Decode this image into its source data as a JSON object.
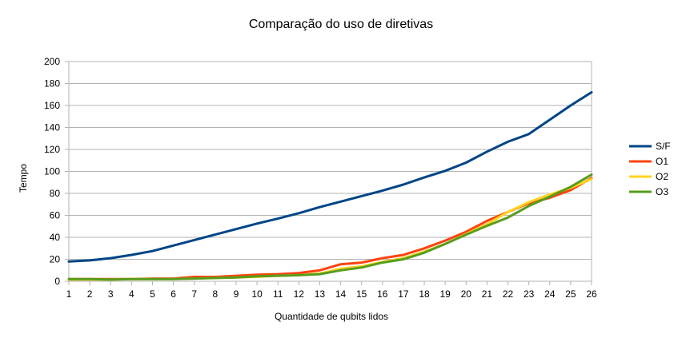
{
  "chart_data": {
    "type": "line",
    "title": "Comparação do uso de diretivas",
    "xlabel": "Quantidade de qubits lidos",
    "ylabel": "Tempo",
    "x": [
      1,
      2,
      3,
      4,
      5,
      6,
      7,
      8,
      9,
      10,
      11,
      12,
      13,
      14,
      15,
      16,
      17,
      18,
      19,
      20,
      21,
      22,
      23,
      24,
      25,
      26
    ],
    "ylim": [
      0,
      200
    ],
    "yticks": [
      0,
      20,
      40,
      60,
      80,
      100,
      120,
      140,
      160,
      180,
      200
    ],
    "grid": "horizontal",
    "legend_position": "right",
    "series": [
      {
        "name": "S/F",
        "color": "#004586",
        "values": [
          18,
          19,
          21,
          24,
          27.5,
          32.5,
          37.5,
          42.5,
          47.5,
          52.5,
          57,
          62,
          67.5,
          72.5,
          77.5,
          82.5,
          88,
          94.5,
          100.5,
          108,
          118,
          127,
          134,
          147,
          160,
          172
        ]
      },
      {
        "name": "O1",
        "color": "#ff420e",
        "values": [
          2,
          2,
          2,
          2,
          2.5,
          2.5,
          4,
          4,
          5,
          6,
          6.5,
          7.5,
          10,
          15.5,
          17,
          21,
          24,
          30,
          37,
          45,
          55,
          63,
          71,
          76,
          83,
          94
        ]
      },
      {
        "name": "O2",
        "color": "#ffd320",
        "values": [
          1.5,
          1.5,
          1.5,
          2,
          2,
          2,
          2.5,
          3,
          3.5,
          4,
          5,
          5.5,
          7,
          11.5,
          13.5,
          17.5,
          21,
          27,
          34,
          43,
          52,
          63,
          72,
          79,
          85,
          93
        ]
      },
      {
        "name": "O3",
        "color": "#579d1c",
        "values": [
          2,
          2,
          1.5,
          2,
          2,
          2,
          2.5,
          3,
          3.5,
          4.5,
          5,
          5.5,
          6.5,
          10,
          12.5,
          17,
          20,
          26,
          34,
          42.5,
          50.5,
          58,
          68.5,
          77,
          86,
          97
        ]
      }
    ]
  }
}
